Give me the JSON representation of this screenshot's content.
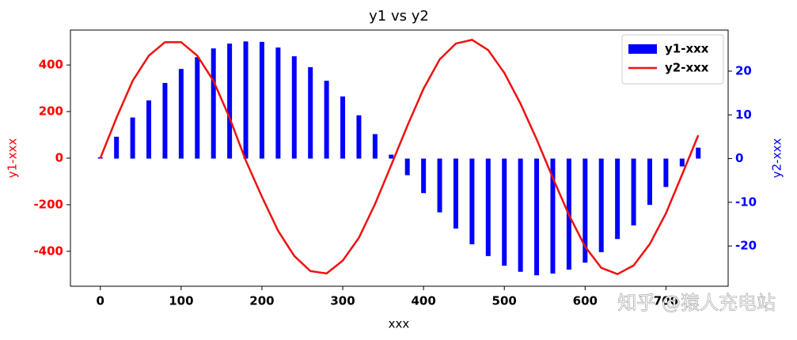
{
  "chart_data": {
    "type": "bar-line",
    "title": "y1 vs y2",
    "xlabel": "xxx",
    "ylabel": "y1-xxx",
    "y2label": "y2-xxx",
    "ylabel_color": "#ff0000",
    "y2label_color": "#0000ff",
    "x": [
      0,
      20,
      40,
      60,
      80,
      100,
      120,
      140,
      160,
      180,
      200,
      220,
      240,
      260,
      280,
      300,
      320,
      340,
      360,
      380,
      400,
      420,
      440,
      460,
      480,
      500,
      520,
      540,
      560,
      580,
      600,
      620,
      640,
      660,
      680,
      700,
      720,
      740
    ],
    "series": [
      {
        "name": "y1-xxx",
        "type": "bar",
        "color": "#0000ff",
        "axis": "y2",
        "values": [
          0.3,
          5.0,
          9.4,
          13.3,
          17.3,
          20.5,
          23.2,
          25.2,
          26.3,
          26.8,
          26.7,
          25.4,
          23.4,
          20.9,
          17.8,
          14.2,
          9.9,
          5.6,
          0.9,
          -3.8,
          -7.9,
          -12.3,
          -16.0,
          -19.6,
          -22.3,
          -24.5,
          -25.9,
          -26.7,
          -26.3,
          -25.4,
          -23.8,
          -21.4,
          -18.4,
          -15.3,
          -10.6,
          -6.5,
          -1.8,
          2.5
        ]
      },
      {
        "name": "y2-xxx",
        "type": "line",
        "color": "#ee1111",
        "axis": "y",
        "values": [
          0,
          173,
          332,
          440,
          498,
          498,
          440,
          332,
          173,
          -10,
          -166,
          -312,
          -420,
          -485,
          -495,
          -440,
          -342,
          -197,
          -30,
          139,
          298,
          424,
          492,
          508,
          464,
          366,
          234,
          81,
          -85,
          -244,
          -380,
          -471,
          -498,
          -461,
          -369,
          -237,
          -71,
          98
        ]
      }
    ],
    "xlim": [
      -37,
      777
    ],
    "xticks": [
      0,
      100,
      200,
      300,
      400,
      500,
      600,
      700
    ],
    "ylim": [
      -550,
      550
    ],
    "yticks": [
      -400,
      -200,
      0,
      200,
      400
    ],
    "y2lim": [
      -29.2,
      29.4
    ],
    "y2ticks": [
      -20,
      -10,
      0,
      10,
      20
    ],
    "legend": "upper right",
    "watermark": "知乎 @猿人充电站"
  }
}
